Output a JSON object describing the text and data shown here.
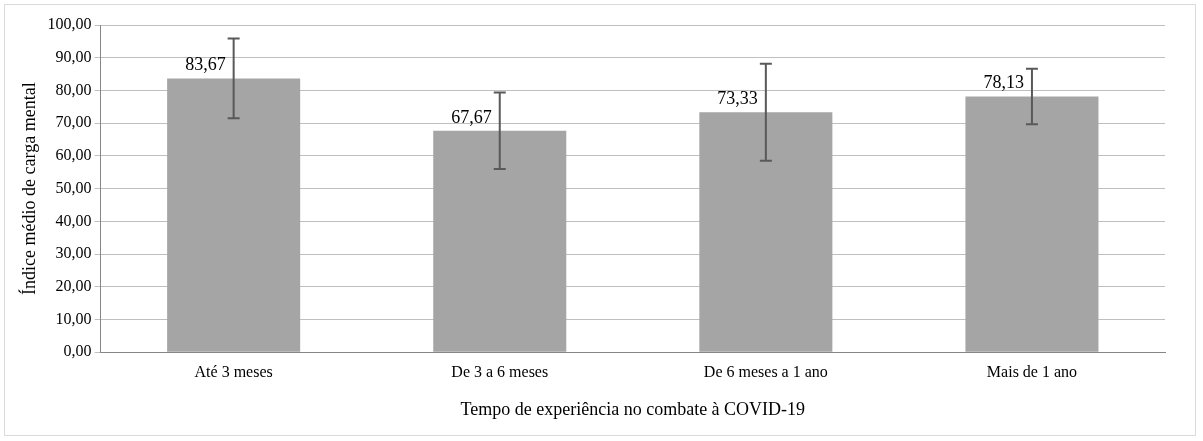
{
  "chart_data": {
    "type": "bar",
    "xlabel": "Tempo de experiência no combate à COVID-19",
    "ylabel": "Índice médio de carga mental",
    "categories": [
      "Até 3 meses",
      "De 3 a 6 meses",
      "De 6 meses a 1 ano",
      "Mais de 1 ano"
    ],
    "values": [
      83.67,
      67.67,
      73.33,
      78.13
    ],
    "value_labels": [
      "83,67",
      "67,67",
      "73,33",
      "78,13"
    ],
    "errors": [
      12.2,
      11.7,
      14.8,
      8.5
    ],
    "color": "#a5a5a5",
    "ylim": [
      0,
      100
    ],
    "yticks": [
      {
        "value": 0,
        "label": "0,00"
      },
      {
        "value": 10,
        "label": "10,00"
      },
      {
        "value": 20,
        "label": "20,00"
      },
      {
        "value": 30,
        "label": "30,00"
      },
      {
        "value": 40,
        "label": "40,00"
      },
      {
        "value": 50,
        "label": "50,00"
      },
      {
        "value": 60,
        "label": "60,00"
      },
      {
        "value": 70,
        "label": "70,00"
      },
      {
        "value": 80,
        "label": "80,00"
      },
      {
        "value": 90,
        "label": "90,00"
      },
      {
        "value": 100,
        "label": "100,00"
      }
    ],
    "grid": "y",
    "legend": false
  }
}
